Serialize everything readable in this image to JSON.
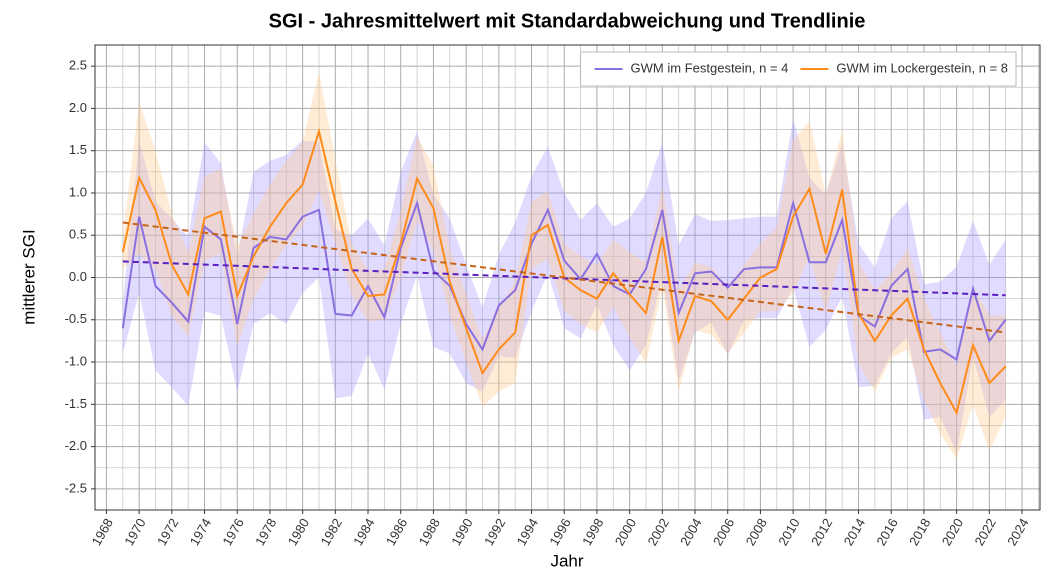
{
  "chart_data": {
    "type": "line",
    "title": "SGI - Jahresmittelwert mit Standardabweichung und Trendlinie",
    "x_label": "Jahr",
    "y_label": "mittlerer SGI",
    "x": [
      1969,
      1970,
      1971,
      1972,
      1973,
      1974,
      1975,
      1976,
      1977,
      1978,
      1979,
      1980,
      1981,
      1982,
      1983,
      1984,
      1985,
      1986,
      1987,
      1988,
      1989,
      1990,
      1991,
      1992,
      1993,
      1994,
      1995,
      1996,
      1997,
      1998,
      1999,
      2000,
      2001,
      2002,
      2003,
      2004,
      2005,
      2006,
      2007,
      2008,
      2009,
      2010,
      2011,
      2012,
      2013,
      2014,
      2015,
      2016,
      2017,
      2018,
      2019,
      2020,
      2021,
      2022,
      2023
    ],
    "series": [
      {
        "name": "GWM im Festgestein, n = 4",
        "color": "#8a6fe0",
        "band_color": "#a99cff",
        "trend_color": "#5a1fc0",
        "values": [
          -0.6,
          0.72,
          -0.1,
          -0.3,
          -0.52,
          0.6,
          0.45,
          -0.55,
          0.35,
          0.48,
          0.45,
          0.72,
          0.8,
          -0.43,
          -0.45,
          -0.1,
          -0.47,
          0.35,
          0.88,
          0.08,
          -0.1,
          -0.55,
          -0.85,
          -0.33,
          -0.15,
          0.4,
          0.8,
          0.2,
          -0.02,
          0.28,
          -0.1,
          -0.2,
          0.1,
          0.8,
          -0.42,
          0.05,
          0.07,
          -0.12,
          0.1,
          0.12,
          0.12,
          0.88,
          0.18,
          0.18,
          0.68,
          -0.45,
          -0.58,
          -0.1,
          0.1,
          -0.88,
          -0.85,
          -0.97,
          -0.13,
          -0.75,
          -0.5
        ],
        "sd": [
          0.3,
          0.9,
          1.0,
          1.0,
          1.0,
          1.0,
          0.9,
          0.8,
          0.9,
          0.9,
          1.0,
          0.9,
          0.8,
          1.0,
          0.95,
          0.8,
          0.85,
          0.9,
          0.85,
          0.9,
          0.8,
          0.7,
          0.5,
          0.6,
          0.8,
          0.8,
          0.75,
          0.8,
          0.7,
          0.6,
          0.7,
          0.9,
          0.9,
          0.8,
          0.8,
          0.7,
          0.6,
          0.8,
          0.6,
          0.6,
          0.6,
          1.0,
          1.0,
          0.8,
          0.9,
          0.85,
          0.7,
          0.8,
          0.8,
          0.8,
          0.8,
          1.1,
          0.8,
          0.9,
          0.95
        ],
        "trend": {
          "x": [
            1969,
            2023
          ],
          "values": [
            0.19,
            -0.21
          ]
        }
      },
      {
        "name": "GWM im Lockergestein, n = 8",
        "color": "#ff8c1a",
        "band_color": "#ffc98a",
        "trend_color": "#c8631a",
        "values": [
          0.3,
          1.18,
          0.8,
          0.15,
          -0.2,
          0.7,
          0.78,
          -0.22,
          0.25,
          0.6,
          0.88,
          1.1,
          1.73,
          0.9,
          0.1,
          -0.22,
          -0.2,
          0.4,
          1.17,
          0.82,
          -0.05,
          -0.6,
          -1.13,
          -0.85,
          -0.65,
          0.5,
          0.62,
          0.0,
          -0.15,
          -0.25,
          0.05,
          -0.2,
          -0.42,
          0.48,
          -0.75,
          -0.22,
          -0.28,
          -0.5,
          -0.25,
          0.0,
          0.1,
          0.72,
          1.05,
          0.28,
          1.04,
          -0.42,
          -0.75,
          -0.45,
          -0.25,
          -0.85,
          -1.25,
          -1.6,
          -0.8,
          -1.25,
          -1.05
        ],
        "sd": [
          0.2,
          0.9,
          0.7,
          0.6,
          0.5,
          0.5,
          0.5,
          0.6,
          0.5,
          0.5,
          0.5,
          0.5,
          0.7,
          0.5,
          0.3,
          0.3,
          0.3,
          0.4,
          0.5,
          0.5,
          0.4,
          0.4,
          0.4,
          0.5,
          0.6,
          0.4,
          0.4,
          0.4,
          0.4,
          0.4,
          0.4,
          0.5,
          0.6,
          0.6,
          0.6,
          0.4,
          0.4,
          0.4,
          0.4,
          0.4,
          0.5,
          0.9,
          0.8,
          0.7,
          0.7,
          0.6,
          0.6,
          0.5,
          0.6,
          0.6,
          0.6,
          0.55,
          0.7,
          0.8,
          0.6
        ],
        "trend": {
          "x": [
            1969,
            2023
          ],
          "values": [
            0.65,
            -0.65
          ]
        }
      }
    ],
    "xlim": [
      1967.3,
      2025.1
    ],
    "xticks": [
      1968,
      1970,
      1972,
      1974,
      1976,
      1978,
      1980,
      1982,
      1984,
      1986,
      1988,
      1990,
      1992,
      1994,
      1996,
      1998,
      2000,
      2002,
      2004,
      2006,
      2008,
      2010,
      2012,
      2014,
      2016,
      2018,
      2020,
      2022,
      2024
    ],
    "x_minor_ticks": [
      1969,
      1971,
      1973,
      1975,
      1977,
      1979,
      1981,
      1983,
      1985,
      1987,
      1989,
      1991,
      1993,
      1995,
      1997,
      1999,
      2001,
      2003,
      2005,
      2007,
      2009,
      2011,
      2013,
      2015,
      2017,
      2019,
      2021,
      2023,
      2025
    ],
    "ylim": [
      -2.75,
      2.75
    ],
    "yticks": [
      -2.5,
      {
        "value": -2,
        "label": "-2.0"
      },
      -1.5,
      {
        "value": -1,
        "label": "-1.0"
      },
      -0.5,
      {
        "value": 0,
        "label": "0.0"
      },
      0.5,
      {
        "value": 1,
        "label": "1.0"
      },
      1.5,
      {
        "value": 2,
        "label": "2.0"
      },
      2.5
    ],
    "y_minor_ticks": [
      -2.75,
      -2.25,
      -1.75,
      -1.25,
      -0.75,
      -0.25,
      0.25,
      0.75,
      1.25,
      1.75,
      2.25,
      2.75
    ],
    "grid": true,
    "legend": "top-right"
  }
}
